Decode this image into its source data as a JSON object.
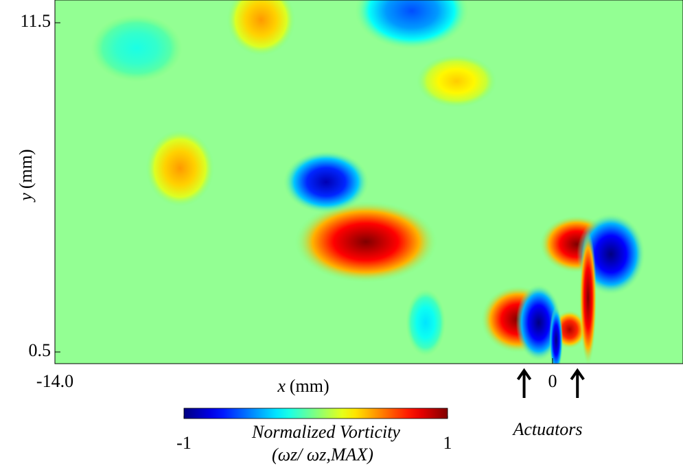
{
  "chart_data": {
    "type": "vorticity-field",
    "xlabel": [
      "x",
      "(mm)"
    ],
    "ylabel": [
      "y",
      "(mm)"
    ],
    "xlim": [
      -14,
      3.67
    ],
    "ylim": [
      0.11,
      12.26
    ],
    "xticks": [
      {
        "value": -14,
        "label": "-14.0"
      },
      0
    ],
    "yticks": [
      0.5,
      11.5
    ],
    "vortices": [
      {
        "x": -5.25,
        "y": 4.18,
        "rx": 1.25,
        "ry": 0.85,
        "w": 1
      },
      {
        "x": -6.37,
        "y": 6.18,
        "rx": 0.75,
        "ry": 0.65,
        "w": -0.9
      },
      {
        "x": -10.48,
        "y": 6.64,
        "rx": 0.6,
        "ry": 0.8,
        "w": 0.45
      },
      {
        "x": -8.2,
        "y": 11.6,
        "rx": 0.6,
        "ry": 0.75,
        "w": 0.45
      },
      {
        "x": -3.96,
        "y": 11.9,
        "rx": 1.0,
        "ry": 0.8,
        "w": -0.6
      },
      {
        "x": -2.7,
        "y": 9.55,
        "rx": 0.7,
        "ry": 0.55,
        "w": 0.35
      },
      {
        "x": -11.7,
        "y": 10.65,
        "rx": 0.8,
        "ry": 0.7,
        "w": -0.2
      },
      {
        "x": 0.68,
        "y": 4.1,
        "rx": 0.65,
        "ry": 0.6,
        "w": 1
      },
      {
        "x": 1.64,
        "y": 3.77,
        "rx": 0.6,
        "ry": 0.85,
        "w": -1
      },
      {
        "x": -0.97,
        "y": 1.59,
        "rx": 0.65,
        "ry": 0.7,
        "w": 1
      },
      {
        "x": -0.39,
        "y": 1.48,
        "rx": 0.4,
        "ry": 0.8,
        "w": -1
      },
      {
        "x": -3.57,
        "y": 1.48,
        "rx": 0.35,
        "ry": 0.7,
        "w": -0.3
      },
      {
        "x": 0.48,
        "y": 1.25,
        "rx": 0.3,
        "ry": 0.4,
        "w": 0.9
      },
      {
        "x": 1.0,
        "y": 2.3,
        "rx": 0.15,
        "ry": 1.4,
        "w": 1
      },
      {
        "x": 0.1,
        "y": 0.9,
        "rx": 0.12,
        "ry": 0.7,
        "w": -1
      }
    ],
    "clim": [
      -1,
      1
    ],
    "cticks": [
      -1,
      1
    ],
    "colorbar_label": "Normalized Vorticity",
    "colorbar_sublabel": "(ωz/ ωz,MAX)",
    "annotation": "Actuators",
    "actuator_x": [
      -0.8,
      0.7
    ]
  }
}
